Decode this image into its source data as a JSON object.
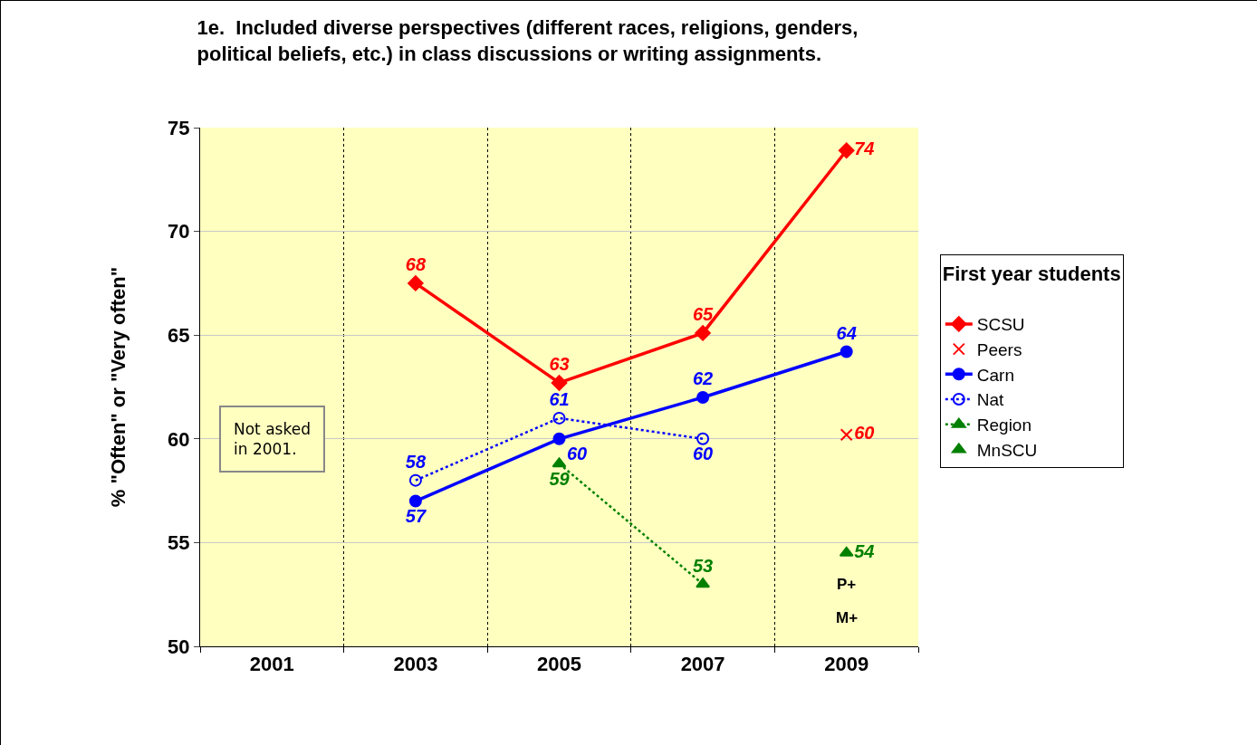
{
  "chart_data": {
    "type": "line",
    "title": "1e.  Included diverse perspectives (different races, religions, genders,\npolitical beliefs, etc.) in class discussions or writing assignments.",
    "ylabel": "% \"Often\" or \"Very often\"",
    "legend_title": "First year students",
    "categories": [
      "2001",
      "2003",
      "2005",
      "2007",
      "2009"
    ],
    "series": [
      {
        "name": "SCSU",
        "color": "#ff0000",
        "marker": "diamond",
        "line_style": "solid",
        "values": [
          null,
          67.5,
          62.7,
          65.1,
          73.9
        ],
        "value_labels": [
          null,
          "68",
          "63",
          "65",
          "74"
        ]
      },
      {
        "name": "Peers",
        "type": "scatter",
        "color": "#ff0000",
        "marker": "cross",
        "values": [
          null,
          null,
          null,
          null,
          60.2
        ],
        "value_labels": [
          null,
          null,
          null,
          null,
          "60"
        ]
      },
      {
        "name": "Carn",
        "color": "#0000ff",
        "marker": "circle",
        "line_style": "solid",
        "values": [
          null,
          57,
          60,
          62,
          64.2
        ],
        "value_labels": [
          null,
          "57",
          "60",
          "62",
          "64"
        ]
      },
      {
        "name": "Nat",
        "color": "#0000ff",
        "marker": "circle",
        "line_style": "dotted",
        "values": [
          null,
          58,
          61,
          60,
          null
        ],
        "value_labels": [
          null,
          "58",
          "61",
          "60",
          null
        ]
      },
      {
        "name": "Region",
        "color": "#008000",
        "marker": "triangle",
        "line_style": "dotted",
        "values": [
          null,
          null,
          58.8,
          53,
          null
        ],
        "value_labels": [
          null,
          null,
          "59",
          "53",
          null
        ]
      },
      {
        "name": "MnSCU",
        "type": "scatter",
        "color": "#008000",
        "marker": "triangle",
        "values": [
          null,
          null,
          null,
          null,
          54.5
        ],
        "value_labels": [
          null,
          null,
          null,
          null,
          "54"
        ]
      }
    ],
    "ylim": [
      50,
      75
    ],
    "yticks": [
      50,
      55,
      60,
      65,
      70,
      75
    ],
    "grid": true,
    "legend": "right",
    "annotations": [
      "Not asked\nin 2001.",
      "P+",
      "M+"
    ]
  }
}
